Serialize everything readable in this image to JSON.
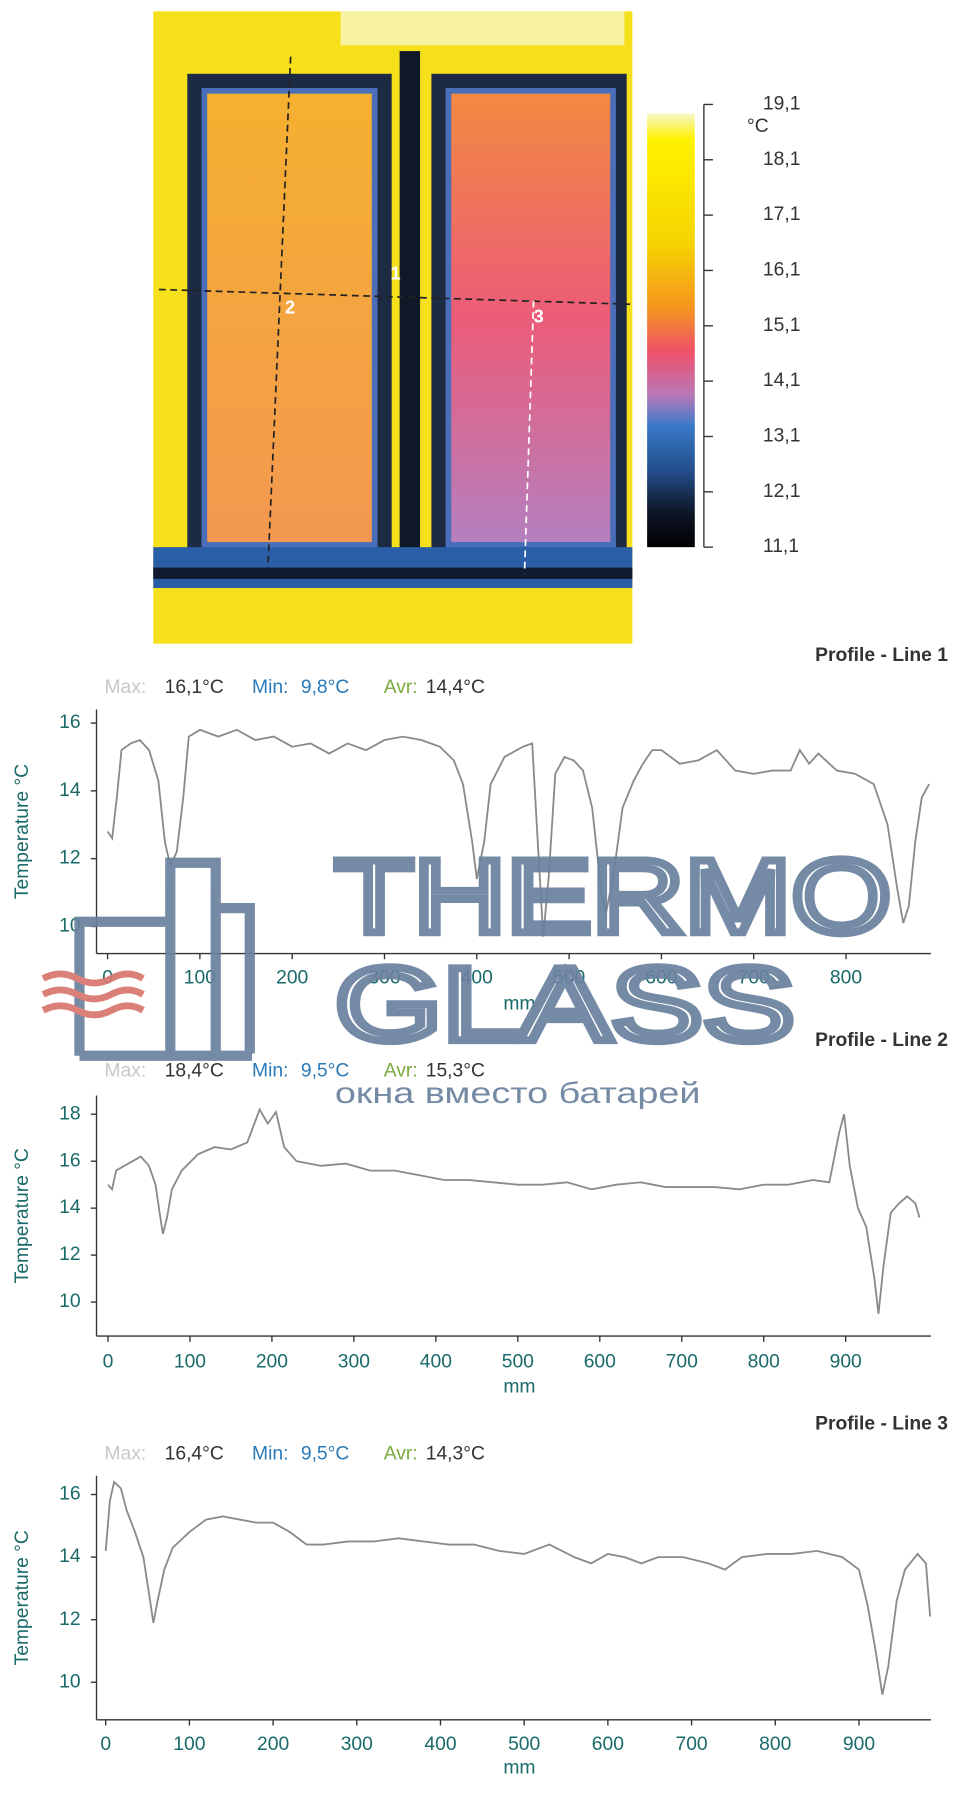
{
  "thermal_image": {
    "unit": "°C",
    "line_labels": [
      "1",
      "2",
      "3"
    ],
    "scale_ticks": [
      {
        "value": 19.1,
        "label": "19,1"
      },
      {
        "value": 18.1,
        "label": "18,1"
      },
      {
        "value": 17.1,
        "label": "17,1"
      },
      {
        "value": 16.1,
        "label": "16,1"
      },
      {
        "value": 15.1,
        "label": "15,1"
      },
      {
        "value": 14.1,
        "label": "14,1"
      },
      {
        "value": 13.1,
        "label": "13,1"
      },
      {
        "value": 12.1,
        "label": "12,1"
      },
      {
        "value": 11.1,
        "label": "11,1"
      }
    ],
    "scale_lim": [
      11.1,
      19.1
    ]
  },
  "watermark": {
    "line1": "THERMO",
    "line2": "GLASS",
    "tagline": "окна вместо батарей"
  },
  "chart_data": [
    {
      "type": "line",
      "title": "Profile - Line 1",
      "stats": [
        {
          "label": "Max:",
          "value": "16,1°C"
        },
        {
          "label": "Min:",
          "value": "9,8°C"
        },
        {
          "label": "Avr:",
          "value": "14,4°C"
        }
      ],
      "xlabel": "mm",
      "ylabel": "Temperature °C",
      "color": "#8a8a8a",
      "x": [
        0,
        5,
        10,
        15,
        25,
        35,
        45,
        55,
        62,
        68,
        75,
        82,
        88,
        100,
        120,
        140,
        160,
        180,
        200,
        220,
        240,
        260,
        280,
        300,
        320,
        340,
        360,
        375,
        385,
        395,
        400,
        408,
        415,
        430,
        450,
        460,
        465,
        472,
        478,
        485,
        495,
        505,
        515,
        525,
        535,
        540,
        548,
        558,
        570,
        580,
        590,
        600,
        620,
        640,
        660,
        680,
        700,
        720,
        740,
        750,
        760,
        770,
        790,
        810,
        830,
        845,
        855,
        862,
        868,
        875,
        882,
        890
      ],
      "values": [
        12.8,
        12.6,
        13.8,
        15.2,
        15.4,
        15.5,
        15.2,
        14.3,
        12.5,
        11.8,
        12.2,
        13.8,
        15.6,
        15.8,
        15.6,
        15.8,
        15.5,
        15.6,
        15.3,
        15.4,
        15.1,
        15.4,
        15.2,
        15.5,
        15.6,
        15.5,
        15.3,
        14.9,
        14.2,
        12.5,
        11.4,
        12.5,
        14.2,
        15.0,
        15.3,
        15.4,
        13.0,
        9.7,
        11.5,
        14.5,
        15.0,
        14.9,
        14.6,
        13.5,
        11.0,
        10.4,
        11.5,
        13.5,
        14.3,
        14.8,
        15.2,
        15.2,
        14.8,
        14.9,
        15.2,
        14.6,
        14.5,
        14.6,
        14.6,
        15.2,
        14.8,
        15.1,
        14.6,
        14.5,
        14.2,
        13.0,
        11.2,
        10.1,
        10.6,
        12.5,
        13.8,
        14.2
      ],
      "xlim": [
        -12,
        892
      ],
      "ylim": [
        9.2,
        16.4
      ],
      "xticks": [
        0,
        100,
        200,
        300,
        400,
        500,
        600,
        700,
        800
      ],
      "yticks": [
        10,
        12,
        14,
        16
      ]
    },
    {
      "type": "line",
      "title": "Profile - Line 2",
      "stats": [
        {
          "label": "Max:",
          "value": "18,4°C"
        },
        {
          "label": "Min:",
          "value": "9,5°C"
        },
        {
          "label": "Avr:",
          "value": "15,3°C"
        }
      ],
      "xlabel": "mm",
      "ylabel": "Temperature °C",
      "color": "#8a8a8a",
      "x": [
        0,
        5,
        10,
        20,
        30,
        40,
        50,
        58,
        63,
        67,
        72,
        78,
        90,
        110,
        130,
        150,
        170,
        185,
        195,
        205,
        215,
        230,
        260,
        290,
        320,
        350,
        380,
        410,
        440,
        470,
        500,
        530,
        560,
        590,
        620,
        650,
        680,
        710,
        740,
        770,
        800,
        830,
        860,
        880,
        892,
        898,
        905,
        915,
        925,
        935,
        940,
        946,
        955,
        965,
        975,
        985,
        990
      ],
      "values": [
        15.0,
        14.8,
        15.6,
        15.8,
        16.0,
        16.2,
        15.8,
        15.0,
        13.8,
        12.9,
        13.6,
        14.8,
        15.6,
        16.3,
        16.6,
        16.5,
        16.8,
        18.2,
        17.6,
        18.1,
        16.6,
        16.0,
        15.8,
        15.9,
        15.6,
        15.6,
        15.4,
        15.2,
        15.2,
        15.1,
        15.0,
        15.0,
        15.1,
        14.8,
        15.0,
        15.1,
        14.9,
        14.9,
        14.9,
        14.8,
        15.0,
        15.0,
        15.2,
        15.1,
        17.2,
        18.0,
        15.8,
        14.0,
        13.2,
        11.0,
        9.5,
        11.5,
        13.8,
        14.2,
        14.5,
        14.2,
        13.6
      ],
      "xlim": [
        -14,
        1004
      ],
      "ylim": [
        8.55,
        18.8
      ],
      "xticks": [
        0,
        100,
        200,
        300,
        400,
        500,
        600,
        700,
        800,
        900
      ],
      "yticks": [
        10,
        12,
        14,
        16,
        18
      ]
    },
    {
      "type": "line",
      "title": "Profile - Line 3",
      "stats": [
        {
          "label": "Max:",
          "value": "16,4°C"
        },
        {
          "label": "Min:",
          "value": "9,5°C"
        },
        {
          "label": "Avr:",
          "value": "14,3°C"
        }
      ],
      "xlabel": "mm",
      "ylabel": "Temperature °C",
      "color": "#8a8a8a",
      "x": [
        0,
        5,
        10,
        18,
        25,
        35,
        45,
        52,
        57,
        62,
        70,
        80,
        100,
        120,
        140,
        160,
        180,
        200,
        220,
        240,
        260,
        290,
        320,
        350,
        380,
        410,
        440,
        470,
        500,
        530,
        560,
        580,
        600,
        620,
        640,
        660,
        690,
        720,
        740,
        760,
        790,
        820,
        850,
        880,
        900,
        910,
        920,
        928,
        935,
        945,
        955,
        970,
        980,
        985
      ],
      "values": [
        14.2,
        15.8,
        16.4,
        16.2,
        15.5,
        14.8,
        14.0,
        12.8,
        11.9,
        12.6,
        13.6,
        14.3,
        14.8,
        15.2,
        15.3,
        15.2,
        15.1,
        15.1,
        14.8,
        14.4,
        14.4,
        14.5,
        14.5,
        14.6,
        14.5,
        14.4,
        14.4,
        14.2,
        14.1,
        14.4,
        14.0,
        13.8,
        14.1,
        14.0,
        13.8,
        14.0,
        14.0,
        13.8,
        13.6,
        14.0,
        14.1,
        14.1,
        14.2,
        14.0,
        13.6,
        12.5,
        11.0,
        9.6,
        10.5,
        12.6,
        13.6,
        14.1,
        13.8,
        12.1
      ],
      "xlim": [
        -11,
        986
      ],
      "ylim": [
        8.8,
        16.6
      ],
      "xticks": [
        0,
        100,
        200,
        300,
        400,
        500,
        600,
        700,
        800,
        900
      ],
      "yticks": [
        10,
        12,
        14,
        16
      ]
    }
  ]
}
